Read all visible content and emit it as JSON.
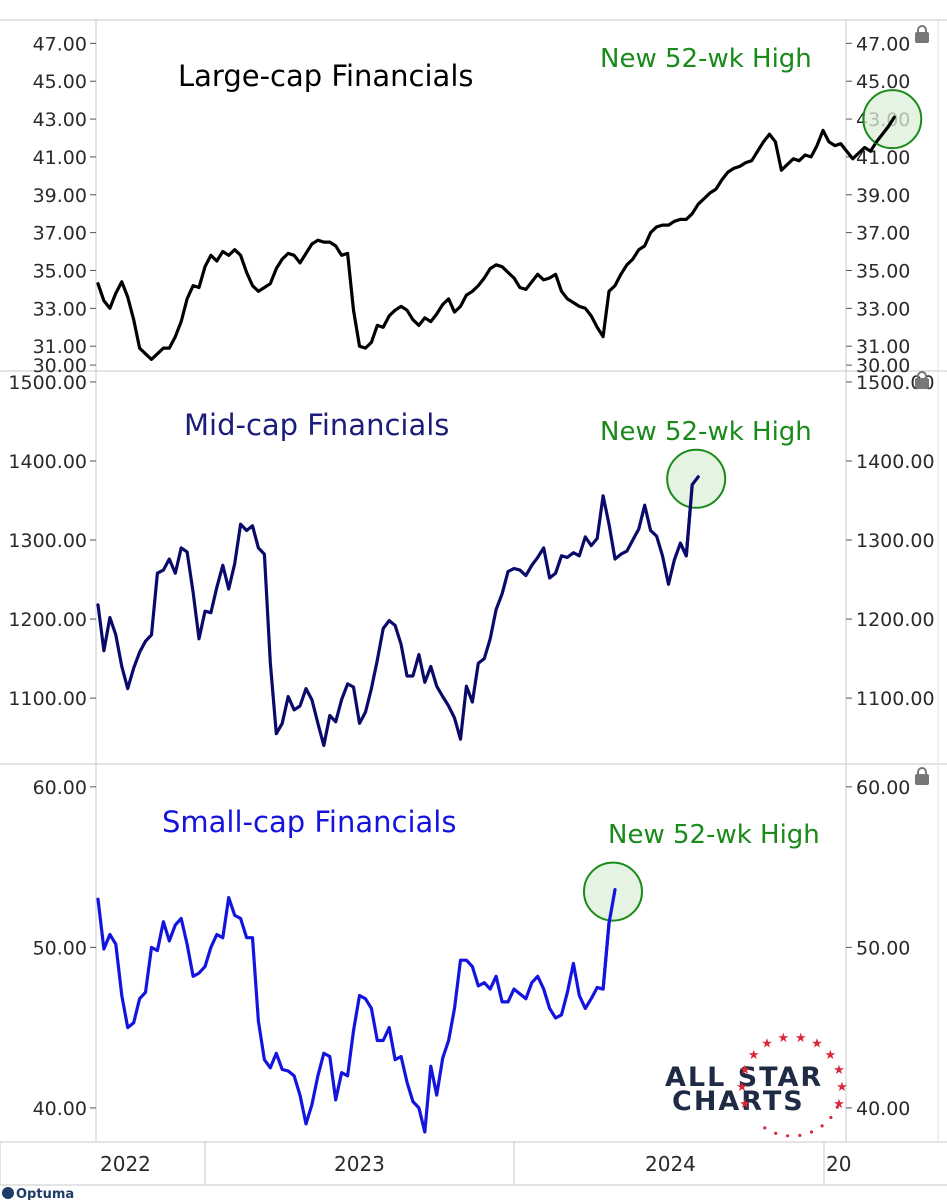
{
  "chart_data": [
    {
      "type": "line",
      "title": "Large-cap Financials",
      "title_color": "#000000",
      "line_color": "#000000",
      "annotation": "New 52-wk High",
      "annotation_color": "#1a8a1a",
      "highlight_fill": "#dcefd8",
      "ylim": [
        29.9,
        47.6
      ],
      "yticks": [
        "47.00",
        "45.00",
        "43.00",
        "41.00",
        "39.00",
        "37.00",
        "35.00",
        "33.00",
        "31.00",
        "30.00"
      ],
      "x_start": 2022.0,
      "x_step": 0.0192,
      "values": [
        34.3,
        33.4,
        33.0,
        33.8,
        34.4,
        33.6,
        32.4,
        30.9,
        30.6,
        30.3,
        30.6,
        30.9,
        30.9,
        31.5,
        32.3,
        33.5,
        34.2,
        34.1,
        35.2,
        35.8,
        35.5,
        36.0,
        35.8,
        36.1,
        35.8,
        34.9,
        34.2,
        33.9,
        34.1,
        34.3,
        35.1,
        35.6,
        35.9,
        35.8,
        35.4,
        35.9,
        36.4,
        36.6,
        36.5,
        36.5,
        36.3,
        35.8,
        35.9,
        32.9,
        31.0,
        30.9,
        31.2,
        32.1,
        32.0,
        32.6,
        32.9,
        33.1,
        32.9,
        32.4,
        32.1,
        32.5,
        32.3,
        32.7,
        33.2,
        33.5,
        32.8,
        33.1,
        33.7,
        33.9,
        34.2,
        34.6,
        35.1,
        35.3,
        35.2,
        34.9,
        34.6,
        34.1,
        34.0,
        34.4,
        34.8,
        34.5,
        34.6,
        34.8,
        33.9,
        33.5,
        33.3,
        33.1,
        33.0,
        32.6,
        32.0,
        31.5,
        33.9,
        34.2,
        34.8,
        35.3,
        35.6,
        36.1,
        36.3,
        37.0,
        37.3,
        37.4,
        37.4,
        37.6,
        37.7,
        37.7,
        38.0,
        38.5,
        38.8,
        39.1,
        39.3,
        39.8,
        40.2,
        40.4,
        40.5,
        40.7,
        40.8,
        41.3,
        41.8,
        42.2,
        41.8,
        40.3,
        40.6,
        40.9,
        40.8,
        41.1,
        41.0,
        41.6,
        42.4,
        41.8,
        41.6,
        41.7,
        41.3,
        40.9,
        41.2,
        41.5,
        41.3,
        41.8,
        42.2,
        42.6,
        43.1
      ]
    },
    {
      "type": "line",
      "title": "Mid-cap Financials",
      "title_color": "#1c1c7a",
      "line_color": "#0a0a6a",
      "annotation": "New 52-wk High",
      "annotation_color": "#1a8a1a",
      "highlight_fill": "#dcefd8",
      "ylim": [
        1028,
        1505
      ],
      "yticks": [
        "1500.00",
        "1400.00",
        "1300.00",
        "1200.00",
        "1100.00"
      ],
      "x_start": 2022.0,
      "x_step": 0.0192,
      "values": [
        1218,
        1160,
        1202,
        1180,
        1140,
        1112,
        1138,
        1158,
        1172,
        1180,
        1258,
        1262,
        1276,
        1258,
        1290,
        1285,
        1234,
        1175,
        1210,
        1208,
        1240,
        1268,
        1238,
        1270,
        1320,
        1312,
        1318,
        1290,
        1282,
        1145,
        1055,
        1068,
        1102,
        1085,
        1090,
        1112,
        1098,
        1068,
        1040,
        1078,
        1070,
        1098,
        1118,
        1114,
        1068,
        1082,
        1112,
        1148,
        1188,
        1198,
        1192,
        1168,
        1128,
        1128,
        1155,
        1120,
        1140,
        1115,
        1102,
        1090,
        1075,
        1048,
        1115,
        1095,
        1144,
        1150,
        1175,
        1212,
        1232,
        1260,
        1264,
        1262,
        1255,
        1268,
        1278,
        1290,
        1252,
        1258,
        1280,
        1278,
        1284,
        1280,
        1304,
        1293,
        1302,
        1356,
        1320,
        1276,
        1282,
        1286,
        1300,
        1314,
        1344,
        1312,
        1305,
        1280,
        1244,
        1275,
        1296,
        1280,
        1370,
        1380
      ]
    },
    {
      "type": "line",
      "title": "Small-cap Financials",
      "title_color": "#1414dd",
      "line_color": "#1414e0",
      "annotation": "New 52-wk High",
      "annotation_color": "#1a8a1a",
      "highlight_fill": "#dcefd8",
      "ylim": [
        38.0,
        60.8
      ],
      "yticks": [
        "60.00",
        "50.00",
        "40.00"
      ],
      "x_start": 2022.0,
      "x_step": 0.0192,
      "values": [
        53.0,
        49.9,
        50.8,
        50.2,
        47.0,
        45.0,
        45.3,
        46.8,
        47.2,
        50.0,
        49.8,
        51.6,
        50.4,
        51.4,
        51.8,
        50.2,
        48.2,
        48.4,
        48.8,
        50.0,
        50.8,
        50.6,
        53.1,
        52.0,
        51.8,
        50.6,
        50.6,
        45.4,
        43.0,
        42.5,
        43.4,
        42.4,
        42.3,
        42.0,
        40.8,
        39.0,
        40.2,
        42.0,
        43.4,
        43.2,
        40.5,
        42.2,
        42.0,
        44.8,
        47.0,
        46.8,
        46.2,
        44.2,
        44.2,
        45.0,
        43.0,
        43.2,
        41.6,
        40.4,
        40.0,
        38.5,
        42.6,
        40.8,
        43.1,
        44.2,
        46.2,
        49.2,
        49.2,
        48.8,
        47.6,
        47.8,
        47.4,
        48.2,
        46.6,
        46.6,
        47.4,
        47.1,
        46.8,
        47.8,
        48.2,
        47.4,
        46.2,
        45.6,
        45.8,
        47.2,
        49.0,
        47.0,
        46.2,
        46.8,
        47.5,
        47.4,
        51.5,
        53.6
      ]
    }
  ],
  "x_axis": {
    "labels": [
      "2022",
      "2023",
      "2024",
      "20"
    ]
  },
  "branding": {
    "line1": "ALL STAR",
    "line2": "CHARTS",
    "footer": "Optuma"
  }
}
